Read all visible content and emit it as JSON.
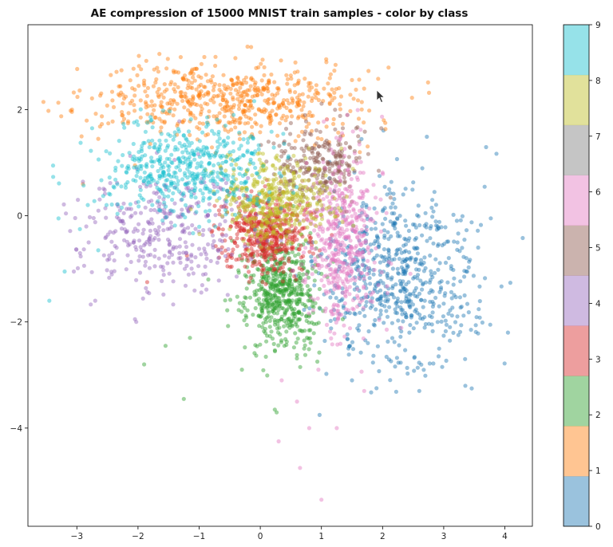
{
  "chart_data": {
    "type": "scatter",
    "title": "AE compression of 15000 MNIST train samples - color by class",
    "xlabel": "",
    "ylabel": "",
    "xlim": [
      -3.8,
      4.45
    ],
    "ylim": [
      -5.85,
      3.6
    ],
    "xticks": [
      -3,
      -2,
      -1,
      0,
      1,
      2,
      3,
      4
    ],
    "yticks": [
      2,
      0,
      -2,
      -4
    ],
    "grid": false,
    "point_alpha": 0.45,
    "colorbar": {
      "ticks": [
        0,
        1,
        2,
        3,
        4,
        5,
        6,
        7,
        8,
        9
      ],
      "range": [
        0,
        9
      ],
      "colors": [
        "#1f77b4",
        "#ff7f0e",
        "#2ca02c",
        "#d62728",
        "#9467bd",
        "#8c564b",
        "#e377c2",
        "#7f7f7f",
        "#bcbd22",
        "#17becf"
      ]
    },
    "series": [
      {
        "class": 0,
        "color": "#1f77b4",
        "cluster": {
          "center": [
            2.25,
            -1.2
          ],
          "spread": [
            0.65,
            0.85
          ],
          "count": 650
        },
        "points": [
          [
            4.05,
            -2.2
          ],
          [
            3.35,
            -2.7
          ],
          [
            1.5,
            -3.1
          ],
          [
            2.6,
            -3.3
          ],
          [
            1.95,
            0.75
          ],
          [
            2.9,
            -0.2
          ],
          [
            1.9,
            -3.25
          ]
        ]
      },
      {
        "class": 1,
        "color": "#ff7f0e",
        "cluster": {
          "center": [
            -0.5,
            2.2
          ],
          "spread": [
            1.05,
            0.35
          ],
          "count": 600
        },
        "points": [
          [
            -2.9,
            0.6
          ],
          [
            -2.65,
            1.45
          ],
          [
            -1.65,
            3.05
          ],
          [
            -0.15,
            3.18
          ],
          [
            1.15,
            2.25
          ],
          [
            -2.05,
            0.95
          ]
        ]
      },
      {
        "class": 2,
        "color": "#2ca02c",
        "cluster": {
          "center": [
            0.35,
            -1.45
          ],
          "spread": [
            0.3,
            0.55
          ],
          "count": 550
        },
        "points": [
          [
            -1.9,
            -2.8
          ],
          [
            -1.55,
            -2.45
          ],
          [
            -1.15,
            -2.3
          ],
          [
            -0.3,
            -2.9
          ],
          [
            -1.25,
            -3.45
          ],
          [
            0.0,
            -1.9
          ],
          [
            -0.85,
            -1.2
          ]
        ]
      },
      {
        "class": 3,
        "color": "#d62728",
        "cluster": {
          "center": [
            0.1,
            -0.35
          ],
          "spread": [
            0.35,
            0.35
          ],
          "count": 500
        },
        "points": [
          [
            -1.85,
            -1.25
          ],
          [
            -1.2,
            -0.75
          ],
          [
            -0.55,
            -0.85
          ]
        ]
      },
      {
        "class": 4,
        "color": "#9467bd",
        "cluster": {
          "center": [
            -1.55,
            -0.3
          ],
          "spread": [
            0.75,
            0.55
          ],
          "count": 350
        },
        "points": [
          [
            -2.7,
            -1.6
          ],
          [
            -2.05,
            -1.95
          ],
          [
            -3.05,
            -1.05
          ],
          [
            -1.65,
            0.35
          ],
          [
            -2.35,
            -0.6
          ]
        ]
      },
      {
        "class": 5,
        "color": "#8c564b",
        "cluster": {
          "center": [
            0.95,
            1.0
          ],
          "spread": [
            0.35,
            0.35
          ],
          "count": 250
        },
        "points": [
          [
            1.6,
            1.5
          ],
          [
            1.35,
            1.65
          ],
          [
            0.7,
            0.4
          ]
        ]
      },
      {
        "class": 6,
        "color": "#e377c2",
        "cluster": {
          "center": [
            1.35,
            -0.55
          ],
          "spread": [
            0.28,
            0.85
          ],
          "count": 500
        },
        "points": [
          [
            0.65,
            -4.75
          ],
          [
            1.0,
            -5.35
          ],
          [
            0.8,
            -4.0
          ],
          [
            0.3,
            -4.25
          ],
          [
            1.25,
            -4.0
          ],
          [
            0.6,
            -3.5
          ],
          [
            0.35,
            -3.1
          ],
          [
            1.7,
            -3.3
          ],
          [
            0.95,
            -2.9
          ]
        ]
      },
      {
        "class": 8,
        "color": "#bcbd22",
        "cluster": {
          "center": [
            0.25,
            0.3
          ],
          "spread": [
            0.45,
            0.4
          ],
          "count": 450
        },
        "points": [
          [
            -0.35,
            0.05
          ],
          [
            0.65,
            0.85
          ],
          [
            -0.5,
            -0.25
          ]
        ]
      },
      {
        "class": 9,
        "color": "#17becf",
        "cluster": {
          "center": [
            -1.2,
            0.9
          ],
          "spread": [
            0.7,
            0.45
          ],
          "count": 500
        },
        "points": [
          [
            -3.45,
            -1.6
          ],
          [
            -3.3,
            -0.05
          ],
          [
            -2.95,
            -0.25
          ],
          [
            -3.2,
            -1.05
          ],
          [
            -2.65,
            -0.65
          ],
          [
            -2.4,
            0.55
          ],
          [
            -0.2,
            1.45
          ]
        ]
      }
    ]
  },
  "cursor": {
    "name": "mouse-pointer"
  }
}
